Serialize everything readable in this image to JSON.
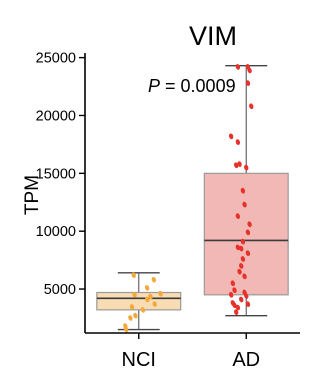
{
  "chart_data": {
    "type": "box",
    "title": "VIM",
    "ylabel": "TPM",
    "xlabel": "",
    "ylim": [
      1200,
      25400
    ],
    "yticks": [
      5000,
      10000,
      15000,
      20000,
      25000
    ],
    "grid": false,
    "annotation": {
      "prefix": "P",
      "text": " = 0.0009"
    },
    "groups": [
      {
        "name": "NCI",
        "box_color": "#f8dcb3",
        "point_color": "#f4a93a",
        "whisker_low": 1500,
        "q1": 3200,
        "median": 4200,
        "q3": 4700,
        "whisker_high": 6400,
        "points": [
          [
            -0.06,
            6200
          ],
          [
            0.18,
            5800
          ],
          [
            0.1,
            5100
          ],
          [
            0.26,
            4600
          ],
          [
            -0.05,
            4500
          ],
          [
            0.14,
            4350
          ],
          [
            0.1,
            4100
          ],
          [
            0.19,
            3700
          ],
          [
            -0.08,
            3450
          ],
          [
            0.05,
            3200
          ],
          [
            -0.04,
            2700
          ],
          [
            -0.1,
            2500
          ],
          [
            -0.16,
            1800
          ],
          [
            -0.15,
            1500
          ]
        ]
      },
      {
        "name": "AD",
        "box_color": "#f2b8b5",
        "point_color": "#e8312a",
        "whisker_low": 2700,
        "q1": 4500,
        "median": 9200,
        "q3": 15000,
        "whisker_high": 24300,
        "points": [
          [
            -0.1,
            24200
          ],
          [
            0.02,
            24200
          ],
          [
            0.04,
            23900
          ],
          [
            0.02,
            22800
          ],
          [
            0.06,
            20800
          ],
          [
            -0.18,
            18200
          ],
          [
            -0.1,
            17700
          ],
          [
            -0.08,
            15800
          ],
          [
            -0.12,
            15700
          ],
          [
            0.0,
            15500
          ],
          [
            -0.04,
            13500
          ],
          [
            -0.02,
            12300
          ],
          [
            -0.1,
            11300
          ],
          [
            0.04,
            10600
          ],
          [
            0.02,
            9900
          ],
          [
            -0.04,
            9100
          ],
          [
            -0.1,
            8600
          ],
          [
            -0.06,
            8500
          ],
          [
            0.02,
            8100
          ],
          [
            -0.04,
            7600
          ],
          [
            -0.06,
            7000
          ],
          [
            -0.08,
            6500
          ],
          [
            -0.02,
            6100
          ],
          [
            -0.16,
            5500
          ],
          [
            -0.14,
            4900
          ],
          [
            -0.02,
            4700
          ],
          [
            -0.18,
            4500
          ],
          [
            0.0,
            4400
          ],
          [
            -0.06,
            4100
          ],
          [
            -0.16,
            3800
          ],
          [
            -0.14,
            3600
          ],
          [
            -0.1,
            3400
          ],
          [
            0.02,
            3700
          ],
          [
            -0.12,
            3000
          ]
        ]
      }
    ]
  }
}
